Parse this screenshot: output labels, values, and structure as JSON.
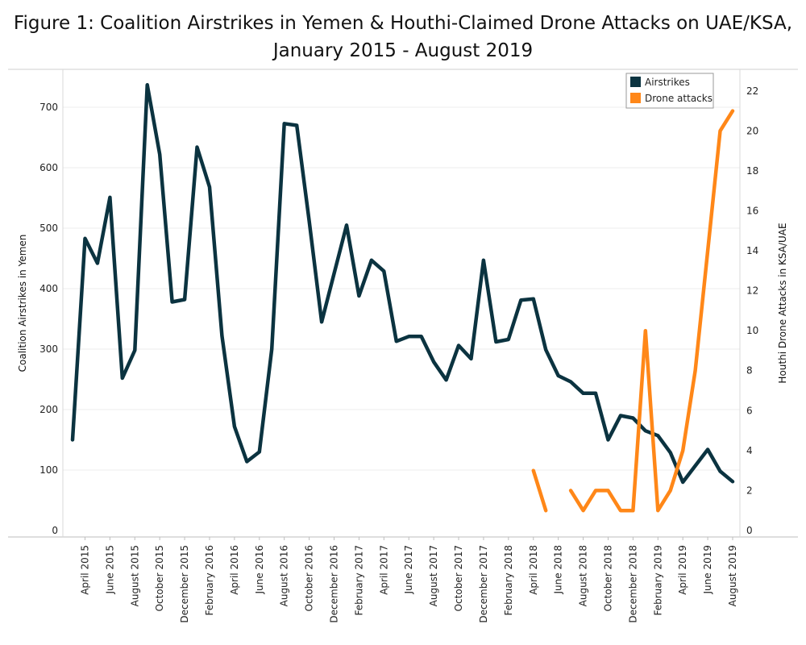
{
  "chart_data": {
    "type": "line",
    "title_line1": "Figure 1: Coalition Airstrikes in Yemen & Houthi-Claimed Drone Attacks on UAE/KSA,",
    "title_line2": "January 2015 - August 2019",
    "ylabel_left": "Coalition Airstrikes in Yemen",
    "ylabel_right": "Houthi Drone Attacks in KSA/UAE",
    "ylim_left": [
      0,
      760
    ],
    "ylim_right": [
      0,
      23
    ],
    "yticks_left": [
      0,
      100,
      200,
      300,
      400,
      500,
      600,
      700
    ],
    "yticks_right": [
      0,
      2,
      4,
      6,
      8,
      10,
      12,
      14,
      16,
      18,
      20,
      22
    ],
    "x": [
      "March 2015",
      "April 2015",
      "May 2015",
      "June 2015",
      "July 2015",
      "August 2015",
      "September 2015",
      "October 2015",
      "November 2015",
      "December 2015",
      "January 2016",
      "February 2016",
      "March 2016",
      "April 2016",
      "May 2016",
      "June 2016",
      "July 2016",
      "August 2016",
      "September 2016",
      "October 2016",
      "November 2016",
      "December 2016",
      "January 2017",
      "February 2017",
      "March 2017",
      "April 2017",
      "May 2017",
      "June 2017",
      "July 2017",
      "August 2017",
      "September 2017",
      "October 2017",
      "November 2017",
      "December 2017",
      "January 2018",
      "February 2018",
      "March 2018",
      "April 2018",
      "May 2018",
      "June 2018",
      "July 2018",
      "August 2018",
      "September 2018",
      "October 2018",
      "November 2018",
      "December 2018",
      "January 2019",
      "February 2019",
      "March 2019",
      "April 2019",
      "May 2019",
      "June 2019",
      "July 2019",
      "August 2019"
    ],
    "x_tick_labels": [
      "April 2015",
      "June 2015",
      "August 2015",
      "October 2015",
      "December 2015",
      "February 2016",
      "April 2016",
      "June 2016",
      "August 2016",
      "October 2016",
      "December 2016",
      "February 2017",
      "April 2017",
      "June 2017",
      "August 2017",
      "October 2017",
      "December 2017",
      "February 2018",
      "April 2018",
      "June 2018",
      "August 2018",
      "October 2018",
      "December 2018",
      "February 2019",
      "April 2019",
      "June 2019",
      "August 2019"
    ],
    "series": [
      {
        "name": "Airstrikes",
        "axis": "left",
        "color": "#0b3340",
        "values": [
          150,
          483,
          442,
          551,
          252,
          298,
          737,
          622,
          378,
          382,
          634,
          568,
          322,
          172,
          114,
          130,
          300,
          673,
          670,
          512,
          345,
          425,
          505,
          388,
          447,
          429,
          313,
          321,
          321,
          279,
          249,
          306,
          284,
          447,
          312,
          316,
          381,
          383,
          299,
          256,
          246,
          227,
          227,
          150,
          190,
          186,
          165,
          157,
          129,
          80,
          107,
          134,
          98,
          81
        ]
      },
      {
        "name": "Drone attacks",
        "axis": "right",
        "color": "#ff8718",
        "values": [
          null,
          null,
          null,
          null,
          null,
          null,
          null,
          null,
          null,
          null,
          null,
          null,
          null,
          null,
          null,
          null,
          null,
          null,
          null,
          null,
          null,
          null,
          null,
          null,
          null,
          null,
          null,
          null,
          null,
          null,
          null,
          null,
          null,
          null,
          null,
          null,
          null,
          3,
          1,
          null,
          2,
          1,
          2,
          2,
          1,
          1,
          10,
          1,
          2,
          4,
          8,
          14,
          20,
          21
        ]
      }
    ],
    "legend_position": "top-right",
    "grid": "horizontal"
  }
}
